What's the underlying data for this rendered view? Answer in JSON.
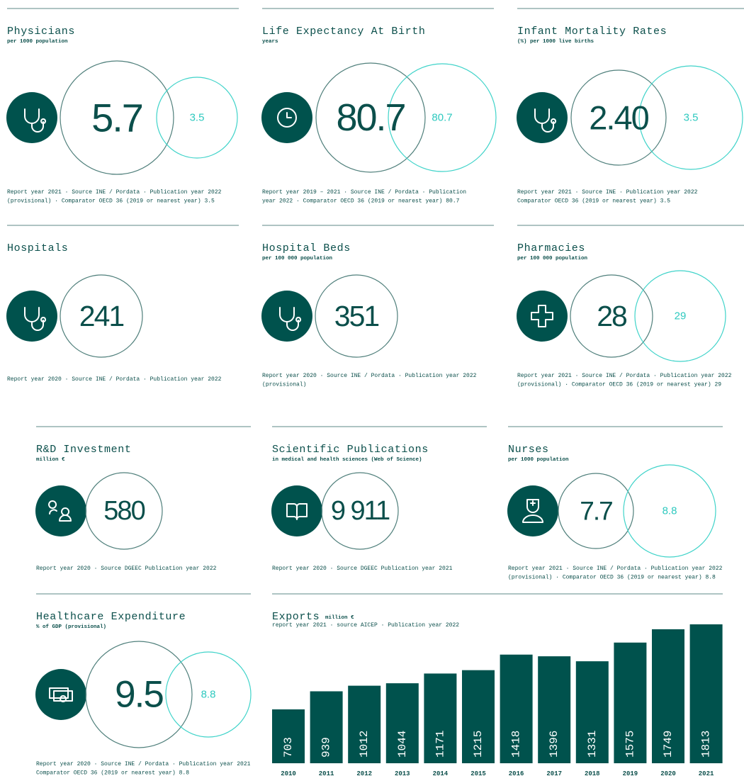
{
  "cards": [
    {
      "title": "Physicians",
      "subtitle": "per 1000 population",
      "value": "5.7",
      "comparator": "3.5",
      "note": [
        "Report year 2021 · Source INE / Pordata · Publication year 2022",
        "(provisional) · Comparator OECD 36 (2019 or nearest year) 3.5"
      ]
    },
    {
      "title": "Life Expectancy At Birth",
      "subtitle": "years",
      "value": "80.7",
      "comparator": "80.7",
      "note": [
        "Report year 2019 – 2021 · Source INE / Pordata · Publication",
        "year 2022 · Comparator OECD 36 (2019 or nearest year) 80.7"
      ]
    },
    {
      "title": "Infant Mortality Rates",
      "subtitle": "(%) per 1000 live births",
      "value": "2.40",
      "comparator": "3.5",
      "note": [
        "Report year 2021 · Source INE · Publication year 2022",
        "Comparator OECD 36 (2019 or nearest year) 3.5"
      ]
    },
    {
      "title": "Hospitals",
      "value": "241",
      "note": [
        "Report year 2020 · Source INE / Pordata · Publication year 2022"
      ]
    },
    {
      "title": "Hospital Beds",
      "subtitle": "per 100 000 population",
      "value": "351",
      "note": [
        "Report year 2020 · Source INE / Pordata · Publication year 2022",
        "(provisional)"
      ]
    },
    {
      "title": "Pharmacies",
      "subtitle": "per 100 000 population",
      "value": "28",
      "comparator": "29",
      "note": [
        "Report year 2021 · Source INE / Pordata · Publication year 2022",
        "(provisional) · Comparator OECD 36 (2019 or nearest year) 29"
      ]
    },
    {
      "title": "R&D Investment",
      "subtitle": "million €",
      "value": "580",
      "note": [
        "Report year 2020 · Source DGEEC Publication year 2022"
      ]
    },
    {
      "title": "Scientific Publications",
      "subtitle": "in medical and health sciences (Web of Science)",
      "value": "9 911",
      "note": [
        "Report year 2020 · Source DGEEC Publication year 2021"
      ]
    },
    {
      "title": "Nurses",
      "subtitle": "per 1000 population",
      "value": "7.7",
      "comparator": "8.8",
      "note": [
        "Report year 2021 · Source INE / Pordata · Publication year 2022",
        "(provisional) · Comparator OECD 36 (2019 or nearest year) 8.8"
      ]
    },
    {
      "title": "Healthcare Expenditure",
      "subtitle": "% of GDP (provisional)",
      "value": "9.5",
      "comparator": "8.8",
      "note": [
        "Report year 2020  · Source INE / Pordata · Publication year 2021",
        "Comparator OECD 36 (2019 or nearest year) 8.8"
      ]
    }
  ],
  "chart_data": {
    "type": "bar",
    "title": "Exports",
    "subtitle": "million €",
    "note": "report year 2021 · source AICEP · Publication year 2022",
    "categories": [
      "2010",
      "2011",
      "2012",
      "2013",
      "2014",
      "2015",
      "2016",
      "2017",
      "2018",
      "2019",
      "2020",
      "2021"
    ],
    "values": [
      703,
      939,
      1012,
      1044,
      1171,
      1215,
      1418,
      1396,
      1331,
      1575,
      1749,
      1813
    ],
    "color": "#00524d"
  }
}
